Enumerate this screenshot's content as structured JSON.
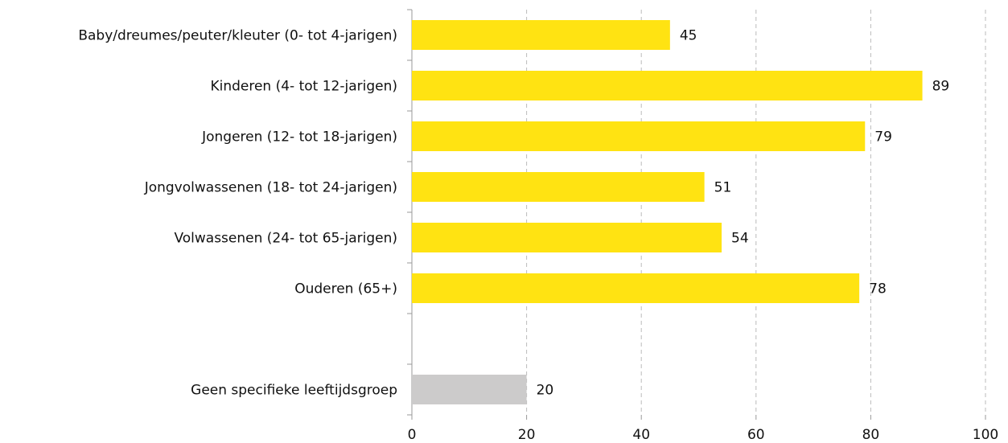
{
  "chart_data": {
    "type": "hbar",
    "categories": [
      "Baby/dreumes/peuter/kleuter (0- tot 4-jarigen)",
      "Kinderen (4- tot 12-jarigen)",
      "Jongeren (12- tot 18-jarigen)",
      "Jongvolwassenen (18- tot 24-jarigen)",
      "Volwassenen (24- tot 65-jarigen)",
      "Ouderen (65+)",
      null,
      "Geen specifieke leeftijdsgroep"
    ],
    "values": [
      45,
      89,
      79,
      51,
      54,
      78,
      null,
      20
    ],
    "colors": [
      "#ffe312",
      "#ffe312",
      "#ffe312",
      "#ffe312",
      "#ffe312",
      "#ffe312",
      null,
      "#cccbcb"
    ],
    "xlim": [
      0,
      100
    ],
    "xticks": [
      0,
      20,
      40,
      60,
      80,
      100
    ],
    "grid": true
  }
}
